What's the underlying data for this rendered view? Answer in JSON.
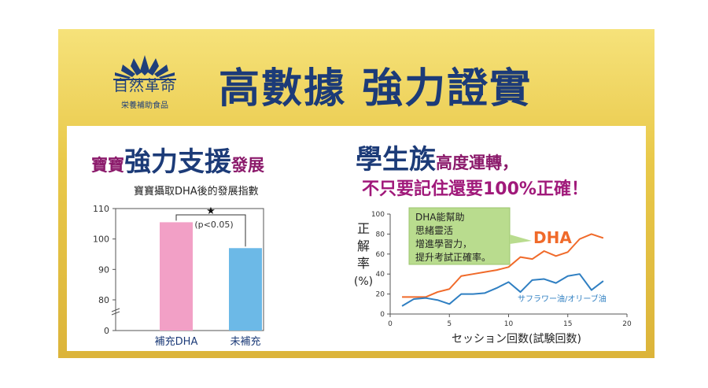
{
  "brand": {
    "name": "自然革命",
    "subtitle": "栄養補助食品",
    "colors": {
      "navy": "#1c3b78",
      "magenta": "#8b1a6b",
      "gold": "#e3c247"
    }
  },
  "headline": "高數據 強力證實",
  "left": {
    "title_a": "寶寶",
    "title_b": "強力支援",
    "title_c": "發展",
    "subtitle": "寶寶攝取DHA後的發展指數"
  },
  "right": {
    "title1_a": "學生族",
    "title1_b": "高度運轉，",
    "title2": "不只要記住還要100%正確！"
  },
  "chart_data": [
    {
      "type": "bar",
      "title": "寶寶攝取DHA後的發展指數",
      "categories": [
        "補充DHA",
        "未補充"
      ],
      "values": [
        105.5,
        97
      ],
      "colors": [
        "#f2a0c6",
        "#6cb9e7"
      ],
      "yticks": [
        "0",
        "80",
        "90",
        "100",
        "110"
      ],
      "ylim": [
        0,
        110
      ],
      "axis_break": true,
      "annotation": {
        "star": "★",
        "text": "(p<0.05)"
      }
    },
    {
      "type": "line",
      "xlabel": "セッション回数(試験回数)",
      "ylabel_chars": [
        "正",
        "解",
        "率",
        "(%)"
      ],
      "xlim": [
        0,
        20
      ],
      "ylim": [
        0,
        100
      ],
      "xticks": [
        0,
        5,
        10,
        15,
        20
      ],
      "yticks": [
        0,
        20,
        40,
        60,
        80,
        100
      ],
      "series": [
        {
          "name": "DHA",
          "color": "#f06a2a",
          "x": [
            1,
            2,
            3,
            4,
            5,
            6,
            7,
            8,
            9,
            10,
            11,
            12,
            13,
            14,
            15,
            16,
            17,
            18
          ],
          "y": [
            17,
            17,
            17,
            22,
            25,
            38,
            40,
            42,
            44,
            47,
            57,
            55,
            63,
            58,
            62,
            75,
            80,
            76
          ]
        },
        {
          "name": "サフラワー油/オリーブ油",
          "color": "#2f7fc2",
          "x": [
            1,
            2,
            3,
            4,
            5,
            6,
            7,
            8,
            9,
            10,
            11,
            12,
            13,
            14,
            15,
            16,
            17,
            18
          ],
          "y": [
            8,
            15,
            16,
            14,
            10,
            20,
            20,
            21,
            26,
            32,
            22,
            34,
            35,
            31,
            38,
            40,
            24,
            33
          ]
        }
      ],
      "callout": [
        "DHA能幫助",
        "思緒靈活",
        "增進學習力，",
        "提升考試正確率。"
      ]
    }
  ]
}
